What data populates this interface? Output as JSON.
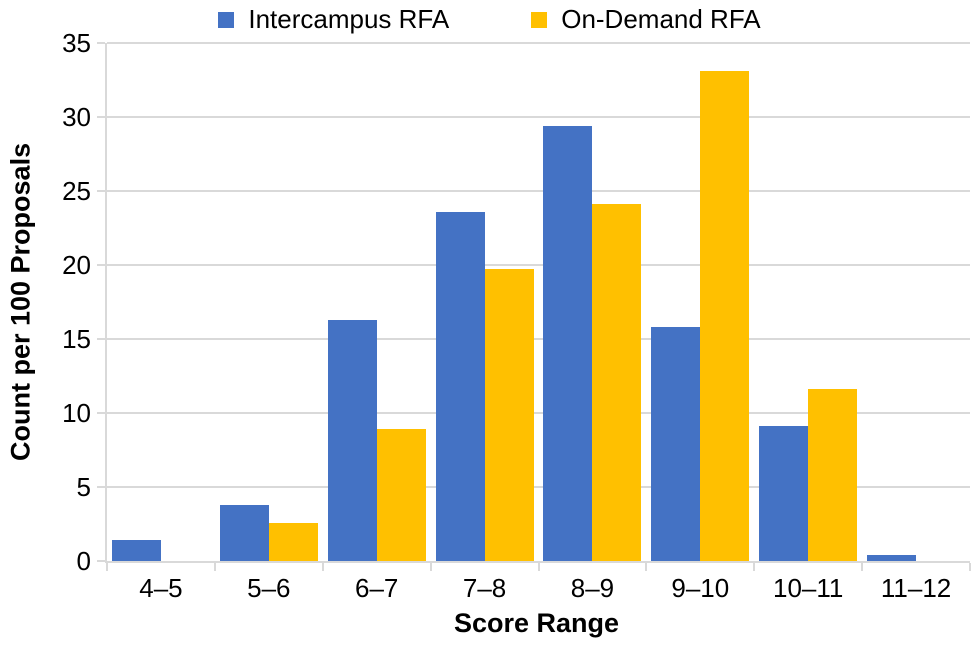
{
  "chart_data": {
    "type": "bar",
    "title": "",
    "xlabel": "Score Range",
    "ylabel": "Count per 100 Proposals",
    "categories": [
      "4–5",
      "5–6",
      "6–7",
      "7–8",
      "8–9",
      "9–10",
      "10–11",
      "11–12"
    ],
    "series": [
      {
        "name": "Intercampus RFA",
        "color": "#4472C4",
        "values": [
          1.4,
          3.8,
          16.3,
          23.6,
          29.4,
          15.8,
          9.1,
          0.4
        ]
      },
      {
        "name": "On-Demand RFA",
        "color": "#FFC000",
        "values": [
          null,
          2.6,
          8.9,
          19.7,
          24.1,
          33.1,
          11.6,
          null
        ]
      }
    ],
    "ylim": [
      0,
      35
    ],
    "yticks": [
      0,
      5,
      10,
      15,
      20,
      25,
      30,
      35
    ],
    "grid": "horizontal",
    "gridline_color": "#D9D9D9",
    "axis_line_color": "#D9D9D9",
    "legend_position": "top",
    "text_color": "#000000",
    "background_color": "#FFFFFF"
  }
}
